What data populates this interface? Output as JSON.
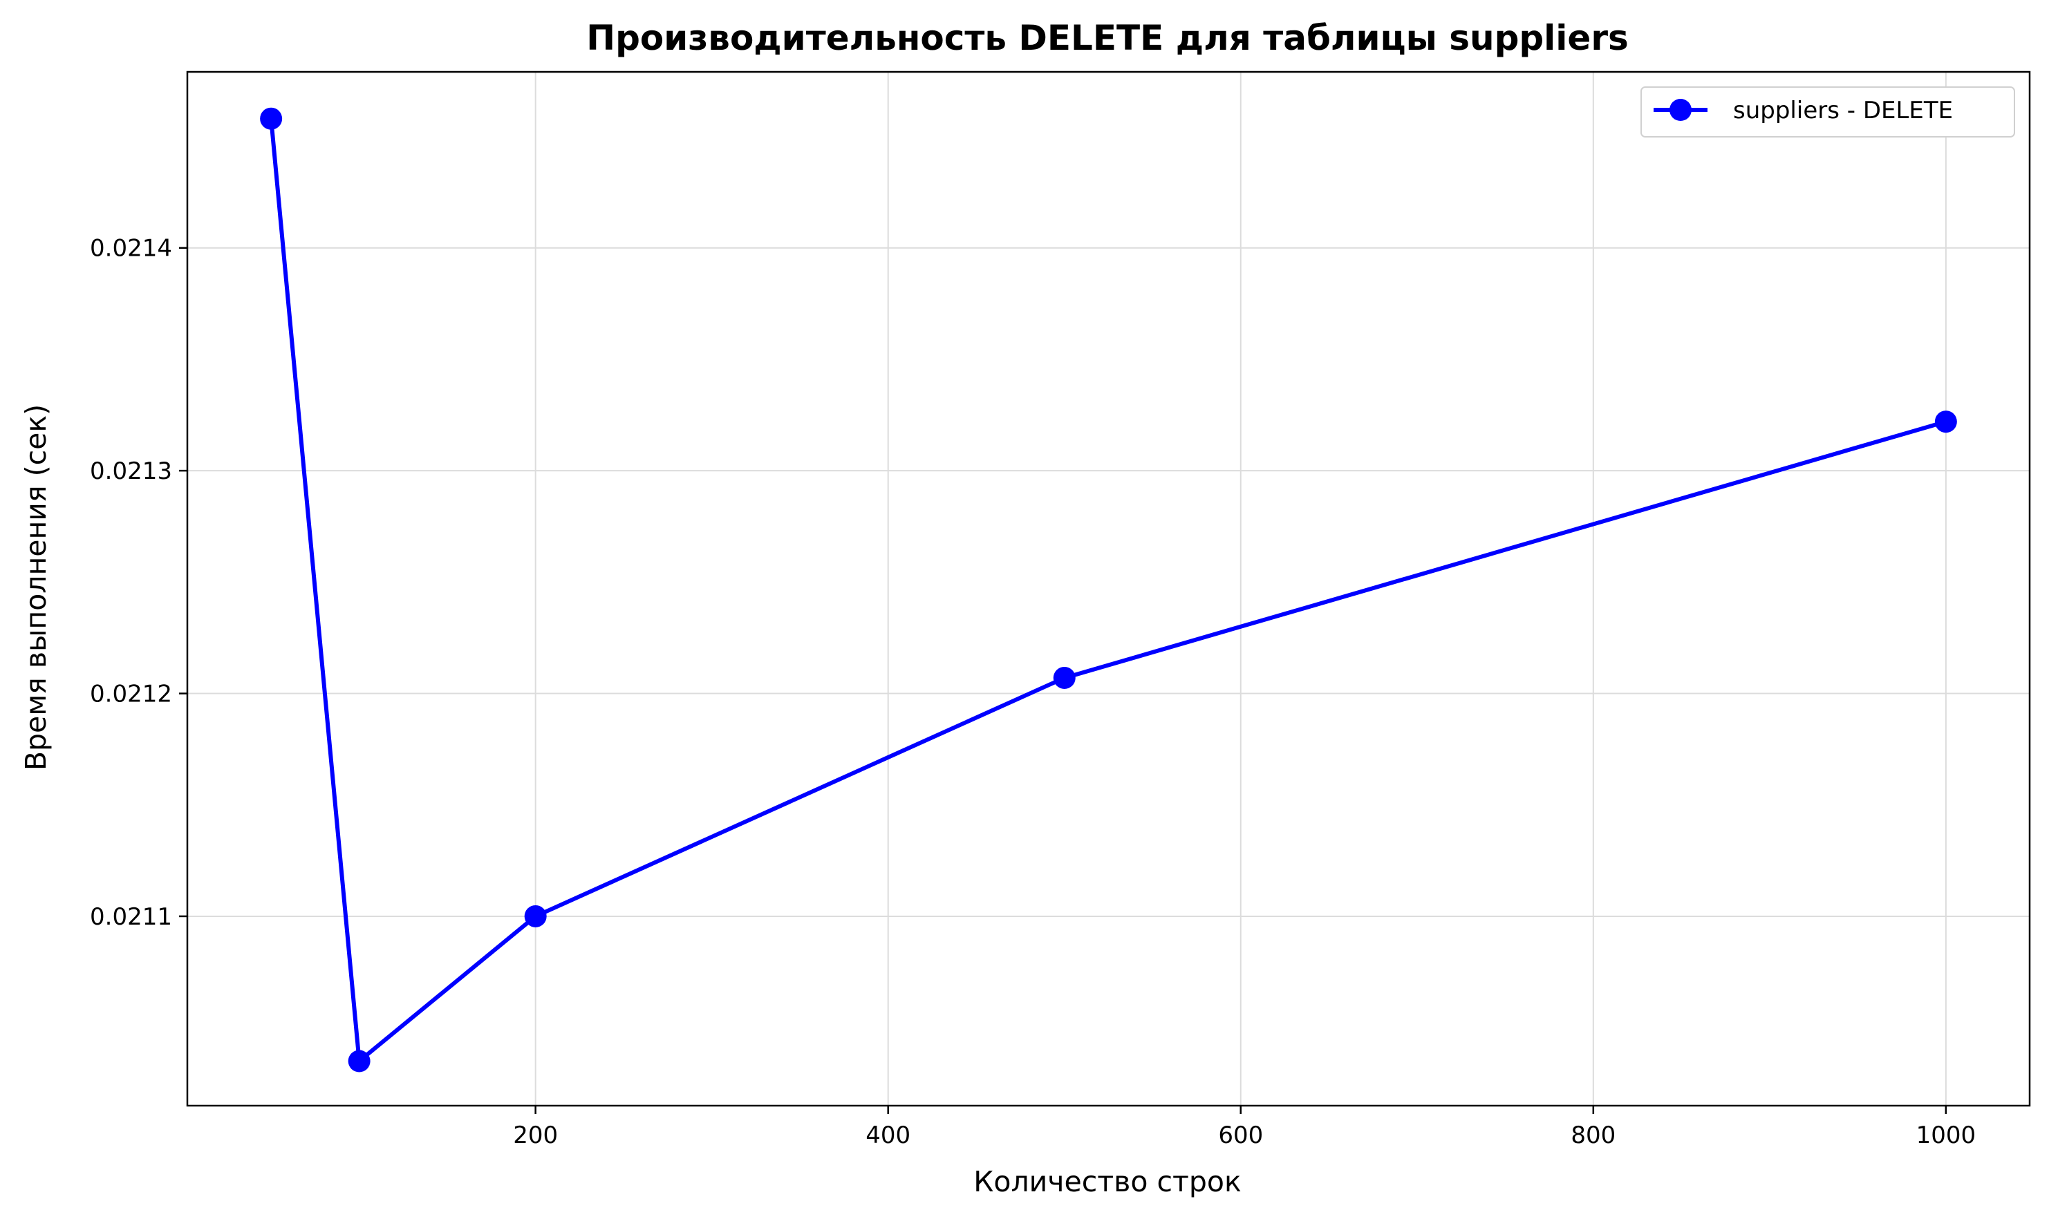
{
  "chart_data": {
    "type": "line",
    "title": "Производительность DELETE для таблицы suppliers",
    "xlabel": "Количество строк",
    "ylabel": "Время выполнения (сек)",
    "xlim": [
      2.5,
      1047.5
    ],
    "ylim": [
      0.021015,
      0.021479
    ],
    "xticks": [
      200,
      400,
      600,
      800,
      1000
    ],
    "yticks": [
      0.0211,
      0.0212,
      0.0213,
      0.0214
    ],
    "ytick_labels": [
      "0.0211",
      "0.0212",
      "0.0213",
      "0.0214"
    ],
    "grid": true,
    "legend_position": "top-right",
    "series": [
      {
        "name": "suppliers - DELETE",
        "color": "#0000ff",
        "marker": "circle",
        "x": [
          50,
          100,
          200,
          500,
          1000
        ],
        "y": [
          0.021458,
          0.021035,
          0.0211,
          0.021207,
          0.021322
        ]
      }
    ]
  }
}
